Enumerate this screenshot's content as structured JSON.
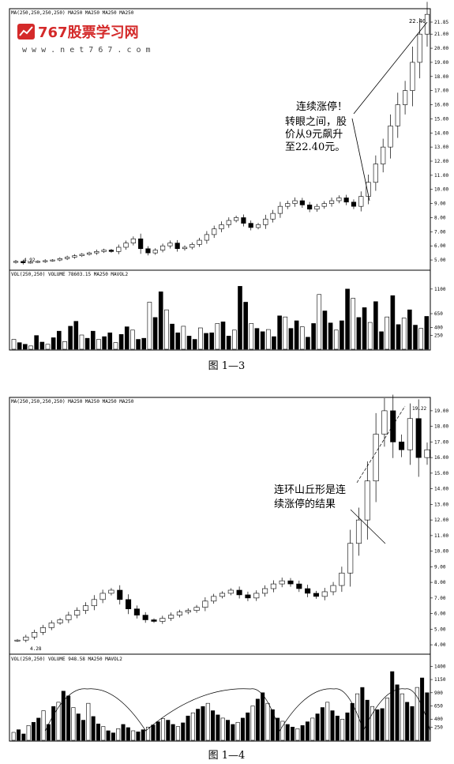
{
  "watermark": {
    "site_name": "767股票学习网",
    "url": "w w w . n e t 7 6 7 . c o m",
    "brand_color": "#d42a2a"
  },
  "chart_data": [
    {
      "type": "candlestick",
      "header": "MA(250,250,250,250) MA250 MA250 MA250 MA250",
      "y_ticks": [
        "21.85",
        "21.00",
        "20.00",
        "19.00",
        "18.00",
        "17.00",
        "16.00",
        "15.00",
        "14.00",
        "13.00",
        "12.00",
        "11.00",
        "10.00",
        "9.00",
        "8.00",
        "7.00",
        "6.00",
        "5.00"
      ],
      "ylim": [
        4.5,
        21.85
      ],
      "last_price_label": "22.40",
      "start_label": "4.92",
      "annotation_title": "连续涨停！",
      "annotation_lines": [
        "转眼之间，股",
        "价从9元飙升",
        "至22.40元。"
      ],
      "close_points": [
        4.9,
        4.8,
        4.85,
        4.9,
        4.95,
        5.0,
        5.1,
        5.2,
        5.3,
        5.4,
        5.5,
        5.6,
        5.7,
        5.6,
        5.9,
        6.2,
        6.5,
        5.8,
        5.5,
        5.7,
        6.0,
        6.2,
        5.8,
        5.9,
        6.1,
        6.4,
        6.8,
        7.2,
        7.5,
        7.8,
        8.0,
        7.6,
        7.3,
        7.5,
        7.9,
        8.3,
        8.8,
        9.0,
        9.2,
        8.9,
        8.6,
        8.8,
        9.0,
        9.2,
        9.4,
        9.1,
        8.8,
        9.5,
        10.5,
        11.8,
        13.0,
        14.5,
        16.0,
        17.0,
        19.0,
        21.0,
        22.4
      ],
      "volume": {
        "header": "VOL(250,250) VOLUME 78603.15 MA250 MAVOL2",
        "y_ticks": [
          "1100",
          "650",
          "400",
          "250"
        ],
        "ylim": [
          0,
          1300
        ],
        "bars": [
          180,
          120,
          90,
          60,
          250,
          130,
          90,
          210,
          330,
          140,
          420,
          510,
          260,
          200,
          330,
          180,
          230,
          300,
          120,
          270,
          410,
          350,
          180,
          200,
          860,
          580,
          1050,
          720,
          460,
          300,
          420,
          240,
          180,
          390,
          290,
          300,
          470,
          500,
          240,
          350,
          1150,
          860,
          470,
          380,
          320,
          360,
          230,
          610,
          590,
          380,
          520,
          410,
          220,
          470,
          1000,
          700,
          480,
          350,
          520,
          1100,
          930,
          580,
          760,
          490,
          870,
          320,
          590,
          980,
          450,
          570,
          720,
          440,
          380,
          600
        ]
      },
      "caption": "图 1—3"
    },
    {
      "type": "candlestick",
      "header": "MA(250,250,250,250) MA250 MA250 MA250 MA250",
      "y_ticks": [
        "19.00",
        "18.00",
        "17.00",
        "16.00",
        "15.00",
        "14.00",
        "13.00",
        "12.00",
        "11.00",
        "10.00",
        "9.00",
        "8.00",
        "7.00",
        "6.00",
        "5.00",
        "4.00"
      ],
      "ylim": [
        3.6,
        19.4
      ],
      "last_price_label": "19.22",
      "start_label": "4.28",
      "annotation_lines": [
        "连环山丘形是连",
        "续涨停的结果"
      ],
      "close_points": [
        4.3,
        4.5,
        4.8,
        5.1,
        5.4,
        5.6,
        5.9,
        6.2,
        6.5,
        6.9,
        7.3,
        7.5,
        6.9,
        6.3,
        5.9,
        5.6,
        5.5,
        5.7,
        5.9,
        6.1,
        6.2,
        6.4,
        6.8,
        7.1,
        7.3,
        7.5,
        7.2,
        7.0,
        7.3,
        7.6,
        7.9,
        8.1,
        7.9,
        7.6,
        7.3,
        7.1,
        7.4,
        7.8,
        8.6,
        10.5,
        12.0,
        14.5,
        17.5,
        19.0,
        17.0,
        16.5,
        18.5,
        16.0,
        16.5
      ],
      "volume": {
        "header": "VOL(250,250) VOLUME 948.58 MA250 MAVOL2",
        "y_ticks": [
          "1400",
          "1150",
          "900",
          "650",
          "400",
          "250"
        ],
        "ylim": [
          0,
          1450
        ],
        "bars": [
          150,
          200,
          120,
          280,
          340,
          420,
          560,
          300,
          640,
          720,
          930,
          840,
          620,
          500,
          380,
          700,
          450,
          310,
          260,
          180,
          140,
          220,
          300,
          240,
          180,
          160,
          200,
          250,
          290,
          350,
          410,
          380,
          300,
          260,
          330,
          460,
          520,
          590,
          640,
          700,
          560,
          480,
          420,
          380,
          300,
          340,
          420,
          520,
          650,
          780,
          900,
          700,
          580,
          420,
          360,
          300,
          250,
          220,
          280,
          350,
          420,
          500,
          620,
          720,
          560,
          460,
          400,
          520,
          700,
          880,
          1000,
          760,
          640,
          580,
          600,
          800,
          1300,
          1050,
          880,
          720,
          640,
          1000,
          1180,
          900
        ],
        "hills": [
          {
            "from": 0.08,
            "peak": 0.18,
            "to": 0.32
          },
          {
            "from": 0.32,
            "peak": 0.57,
            "to": 0.64
          },
          {
            "from": 0.64,
            "peak": 0.77,
            "to": 0.84
          },
          {
            "from": 0.84,
            "peak": 0.94,
            "to": 1.0
          }
        ]
      },
      "caption": "图 1—4"
    }
  ]
}
